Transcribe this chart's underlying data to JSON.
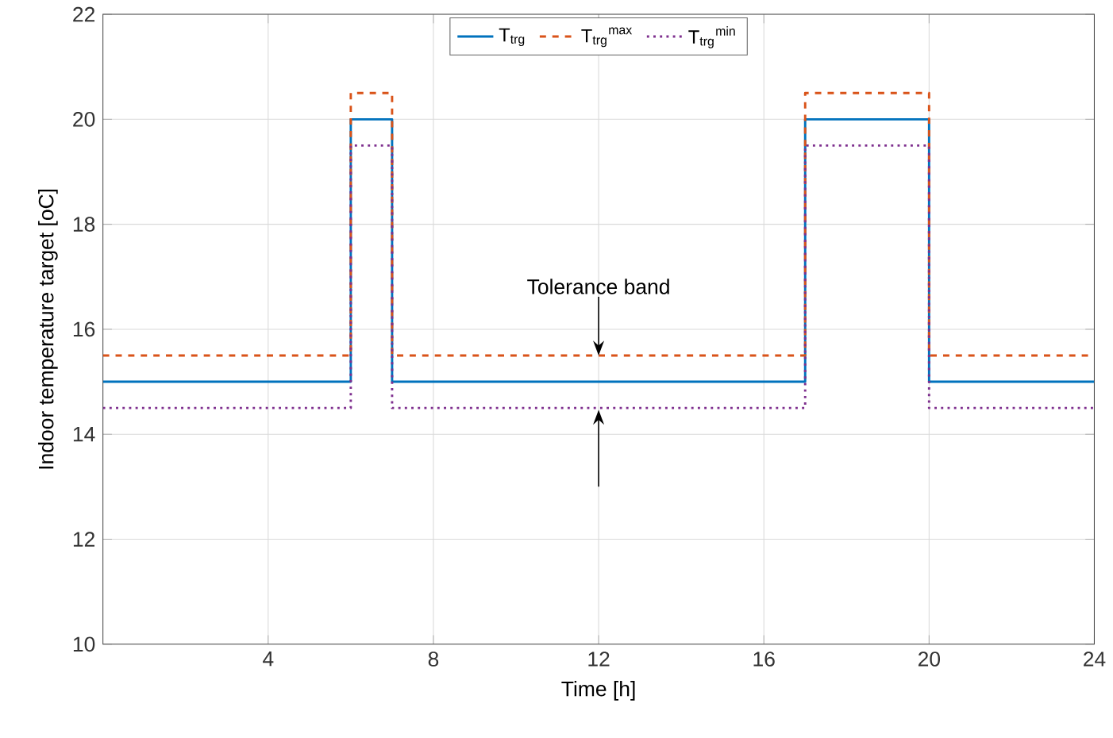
{
  "chart_data": {
    "type": "step",
    "xlabel": "Time [h]",
    "ylabel": "Indoor temperature target [oC]",
    "x": [
      0,
      6,
      7,
      17,
      20,
      24
    ],
    "series": [
      {
        "name": "T$_{trg}$",
        "color": "#0072bd",
        "line_style": "solid",
        "values": [
          15,
          20,
          15,
          20,
          15,
          15
        ]
      },
      {
        "name": "T$_{trg}$$^{max}$",
        "color": "#d95319",
        "line_style": "dashed",
        "values": [
          15.5,
          20.5,
          15.5,
          20.5,
          15.5,
          15.5
        ]
      },
      {
        "name": "T$_{trg}$$^{min}$",
        "color": "#7e2f8e",
        "line_style": "dotted",
        "values": [
          14.5,
          19.5,
          14.5,
          19.5,
          14.5,
          14.5
        ]
      }
    ],
    "xlim": [
      0,
      24
    ],
    "xticks": [
      4,
      8,
      12,
      16,
      20,
      24
    ],
    "ylim": [
      10,
      22
    ],
    "yticks": [
      10,
      12,
      14,
      16,
      18,
      20,
      22
    ],
    "grid": true,
    "legend": "top",
    "annotations": [
      {
        "text": "Tolerance band",
        "x": 12,
        "y": 15.5
      }
    ]
  }
}
